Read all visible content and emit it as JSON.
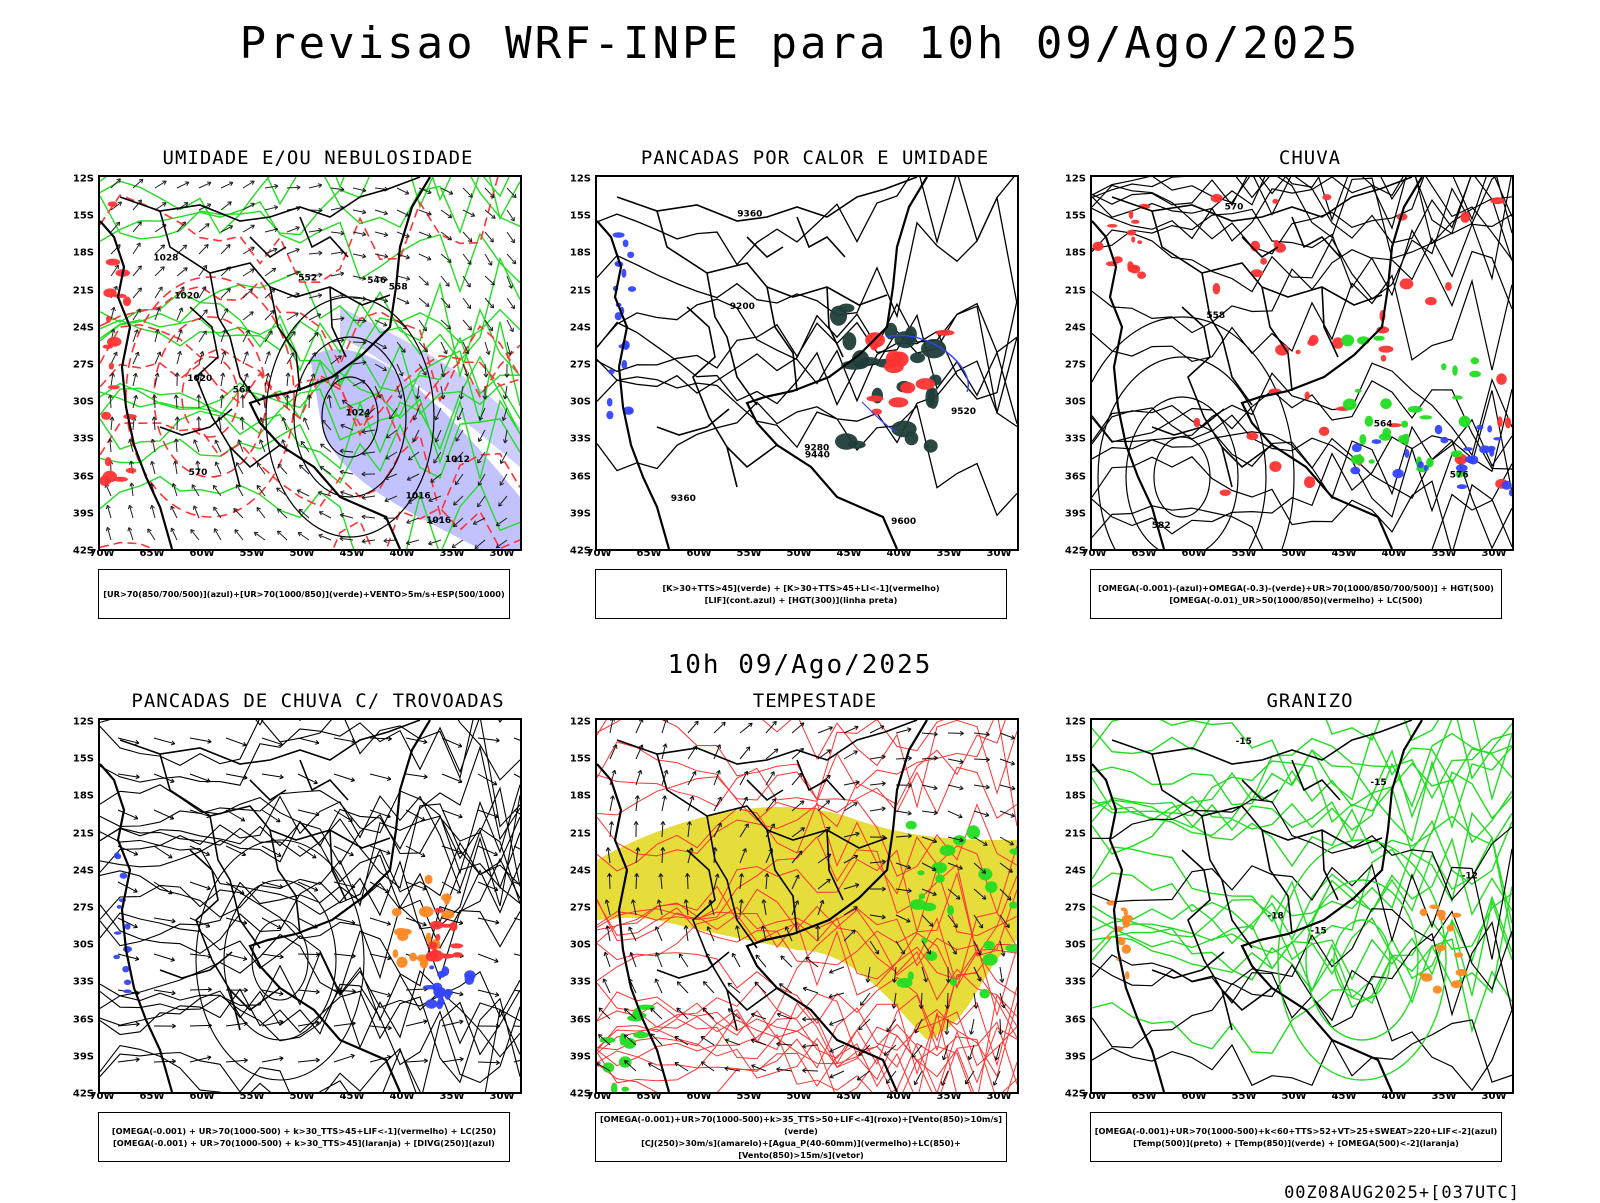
{
  "main_title": "Previsao WRF-INPE  para 10h 09/Ago/2025",
  "mid_title": "10h 09/Ago/2025",
  "footer": "00Z08AUG2025+[037UTC]",
  "lat_ticks": [
    "12S",
    "15S",
    "18S",
    "21S",
    "24S",
    "27S",
    "30S",
    "33S",
    "36S",
    "39S",
    "42S"
  ],
  "lon_ticks": [
    "70W",
    "65W",
    "60W",
    "55W",
    "50W",
    "45W",
    "40W",
    "35W",
    "30W"
  ],
  "colors": {
    "green": "#22dd22",
    "red": "#ff3333",
    "blue": "#3344ff",
    "orange": "#ff8822",
    "yellow": "#e6dc3a",
    "dark_teal": "#1f3d3a",
    "violet": "#9090ff"
  },
  "panels": [
    {
      "title": "UMIDADE E/OU NEBULOSIDADE",
      "legend": [
        "[UR>70(850/700/500)](azul)+[UR>70(1000/850)](verde)+VENTO>5m/s+ESP(500/1000)"
      ],
      "contour_labels": [
        "1016",
        "1020",
        "1024",
        "1028",
        "1012",
        "1020",
        "570",
        "564",
        "558",
        "552",
        "546",
        "1016"
      ]
    },
    {
      "title": "PANCADAS POR CALOR E UMIDADE",
      "legend": [
        "[K>30+TTS>45](verde) + [K>30+TTS>45+LI<-1](vermelho)",
        "[LIF](cont.azul) + [HGT(300)](linha preta)"
      ],
      "contour_labels": [
        "9520",
        "9600",
        "9440",
        "9360",
        "9280",
        "9200",
        "9360"
      ]
    },
    {
      "title": "CHUVA",
      "legend": [
        "[OMEGA(-0.001)-(azul)+OMEGA(-0.3)-(verde)+UR>70(1000/850/700/500)] + HGT(500)",
        "[OMEGA(-0.01)_UR>50(1000/850)(vermelho) + LC(500)"
      ],
      "contour_labels": [
        "582",
        "576",
        "570",
        "558",
        "564"
      ]
    },
    {
      "title": "PANCADAS DE CHUVA C/ TROVOADAS",
      "legend": [
        "[OMEGA(-0.001) + UR>70(1000-500) + k>30_TTS>45+LIF<-1](vermelho) + LC(250)",
        "[OMEGA(-0.001) + UR>70(1000-500) + k>30_TTS>45](laranja) + [DIVG(250)](azul)"
      ],
      "contour_labels": []
    },
    {
      "title": "TEMPESTADE",
      "legend": [
        "[OMEGA(-0.001)+UR>70(1000-500)+k>35_TTS>50+LIF<-4](roxo)+[Vento(850)>10m/s](verde)",
        "[CJ(250)>30m/s](amarelo)+[Agua_P(40-60mm)](vermelho)+LC(850)+[Vento(850)>15m/s](vetor)"
      ],
      "contour_labels": []
    },
    {
      "title": "GRANIZO",
      "legend": [
        "[OMEGA(-0.001)+UR>70(1000-500)+k<60+TTS>52+VT>25+SWEAT>220+LIF<-2](azul)",
        "[Temp(500)](preto) + [Temp(850)](verde) + [OMEGA(500)<-2](laranja)"
      ],
      "contour_labels": [
        "-15",
        "-15",
        "-12",
        "-18",
        "-15"
      ]
    }
  ]
}
